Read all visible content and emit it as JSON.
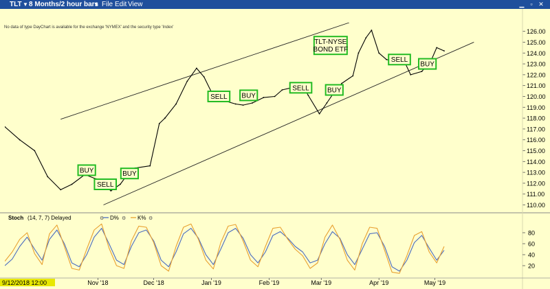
{
  "window": {
    "symbol": "TLT",
    "period": "8 Months/2 hour bars",
    "menu": [
      "File",
      "Edit",
      "View"
    ],
    "controls": [
      "minimize",
      "restore",
      "close"
    ]
  },
  "notice": "No data of type DayChart is available for the exchange 'NYMEX' and the security type 'Index'",
  "cursor_date": "9/12/2018 12:00",
  "chart_data": [
    {
      "type": "line",
      "panel": "price",
      "series": [
        {
          "name": "TLT",
          "x": [
            "2018-09-12",
            "2018-09-20",
            "2018-09-28",
            "2018-10-05",
            "2018-10-12",
            "2018-10-18",
            "2018-10-25",
            "2018-10-31",
            "2018-11-08",
            "2018-11-13",
            "2018-11-16",
            "2018-11-21",
            "2018-11-29",
            "2018-12-04",
            "2018-12-07",
            "2018-12-13",
            "2018-12-19",
            "2018-12-24",
            "2018-12-28",
            "2019-01-03",
            "2019-01-08",
            "2019-01-14",
            "2019-01-18",
            "2019-01-23",
            "2019-01-29",
            "2019-02-04",
            "2019-02-08",
            "2019-02-13",
            "2019-02-19",
            "2019-02-22",
            "2019-02-28",
            "2019-03-04",
            "2019-03-08",
            "2019-03-12",
            "2019-03-18",
            "2019-03-21",
            "2019-03-25",
            "2019-03-28",
            "2019-04-01",
            "2019-04-05",
            "2019-04-10",
            "2019-04-15",
            "2019-04-18",
            "2019-04-24",
            "2019-04-29",
            "2019-05-02",
            "2019-05-06"
          ],
          "values": [
            117.2,
            116.0,
            115.0,
            112.6,
            111.4,
            111.9,
            112.8,
            112.4,
            111.3,
            111.9,
            112.6,
            113.4,
            113.6,
            117.5,
            118.0,
            119.3,
            121.4,
            122.6,
            121.8,
            119.7,
            119.6,
            119.3,
            119.2,
            119.4,
            119.9,
            120.0,
            120.6,
            120.8,
            121.0,
            120.1,
            118.4,
            119.4,
            120.4,
            121.2,
            121.9,
            124.0,
            125.4,
            126.1,
            124.0,
            123.4,
            123.2,
            123.1,
            122.0,
            122.3,
            123.3,
            124.5,
            124.2
          ]
        }
      ],
      "ylim": [
        109.4,
        126.8
      ],
      "yticks": [
        110,
        111,
        112,
        113,
        114,
        115,
        116,
        117,
        118,
        119,
        120,
        121,
        122,
        123,
        124,
        125,
        126
      ],
      "ytick_labels": [
        "110.00",
        "111.00",
        "112.00",
        "113.00",
        "114.00",
        "115.00",
        "116.00",
        "117.00",
        "118.00",
        "119.00",
        "120.00",
        "121.00",
        "122.00",
        "123.00",
        "124.00",
        "125.00",
        "126.00"
      ],
      "xticks": [
        "2018-11-01",
        "2018-12-01",
        "2019-01-01",
        "2019-02-01",
        "2019-03-01",
        "2019-04-01",
        "2019-05-01"
      ],
      "xtick_labels": [
        "Nov '18",
        "Dec '18",
        "Jan '19",
        "Feb '19",
        "Mar '19",
        "Apr '19",
        "May '19"
      ],
      "trendlines": [
        {
          "name": "channel-upper",
          "x": [
            "2018-10-12",
            "2019-03-16"
          ],
          "y": [
            117.9,
            126.8
          ]
        },
        {
          "name": "channel-lower",
          "x": [
            "2018-11-04",
            "2019-05-22"
          ],
          "y": [
            110.0,
            125.0
          ]
        }
      ],
      "annotations": [
        {
          "text": "BUY",
          "x": "2018-10-26",
          "y": 113.2
        },
        {
          "text": "SELL",
          "x": "2018-11-05",
          "y": 111.9
        },
        {
          "text": "BUY",
          "x": "2018-11-18",
          "y": 112.9
        },
        {
          "text": "SELL",
          "x": "2019-01-05",
          "y": 120.0
        },
        {
          "text": "BUY",
          "x": "2019-01-21",
          "y": 120.1
        },
        {
          "text": "SELL",
          "x": "2019-02-18",
          "y": 120.8
        },
        {
          "text": "BUY",
          "x": "2019-03-08",
          "y": 120.6
        },
        {
          "text": "SELL",
          "x": "2019-04-12",
          "y": 123.4
        },
        {
          "text": "BUY",
          "x": "2019-04-27",
          "y": 123.0
        },
        {
          "text": "TLT-NYSE\nBOND ETF",
          "x": "2019-03-06",
          "y": 124.7
        }
      ],
      "grid": false
    },
    {
      "type": "line",
      "panel": "stochastic",
      "title": "Stoch",
      "params": "(14, 7, 7) Delayed",
      "series": [
        {
          "name": "D%",
          "color": "#4a6cc0",
          "x": [
            "2018-09-12",
            "2018-09-16",
            "2018-09-20",
            "2018-09-24",
            "2018-09-28",
            "2018-10-02",
            "2018-10-06",
            "2018-10-10",
            "2018-10-14",
            "2018-10-18",
            "2018-10-22",
            "2018-10-26",
            "2018-10-30",
            "2018-11-03",
            "2018-11-07",
            "2018-11-11",
            "2018-11-15",
            "2018-11-19",
            "2018-11-23",
            "2018-11-27",
            "2018-12-01",
            "2018-12-05",
            "2018-12-09",
            "2018-12-13",
            "2018-12-17",
            "2018-12-21",
            "2018-12-25",
            "2018-12-29",
            "2019-01-02",
            "2019-01-06",
            "2019-01-10",
            "2019-01-14",
            "2019-01-18",
            "2019-01-22",
            "2019-01-26",
            "2019-01-30",
            "2019-02-03",
            "2019-02-07",
            "2019-02-11",
            "2019-02-15",
            "2019-02-19",
            "2019-02-23",
            "2019-02-27",
            "2019-03-03",
            "2019-03-07",
            "2019-03-11",
            "2019-03-15",
            "2019-03-19",
            "2019-03-23",
            "2019-03-27",
            "2019-03-31",
            "2019-04-04",
            "2019-04-08",
            "2019-04-12",
            "2019-04-16",
            "2019-04-20",
            "2019-04-24",
            "2019-04-28",
            "2019-05-02",
            "2019-05-06"
          ],
          "values": [
            20,
            32,
            55,
            72,
            50,
            30,
            68,
            85,
            60,
            25,
            18,
            40,
            72,
            88,
            60,
            30,
            22,
            55,
            80,
            85,
            65,
            30,
            18,
            45,
            78,
            88,
            70,
            40,
            22,
            50,
            80,
            88,
            70,
            40,
            25,
            45,
            75,
            82,
            70,
            55,
            45,
            25,
            30,
            60,
            82,
            70,
            40,
            22,
            50,
            78,
            80,
            55,
            18,
            10,
            30,
            62,
            75,
            52,
            30,
            48
          ]
        },
        {
          "name": "K%",
          "color": "#e8a030",
          "x": [
            "2018-09-12",
            "2018-09-16",
            "2018-09-20",
            "2018-09-24",
            "2018-09-28",
            "2018-10-02",
            "2018-10-06",
            "2018-10-10",
            "2018-10-14",
            "2018-10-18",
            "2018-10-22",
            "2018-10-26",
            "2018-10-30",
            "2018-11-03",
            "2018-11-07",
            "2018-11-11",
            "2018-11-15",
            "2018-11-19",
            "2018-11-23",
            "2018-11-27",
            "2018-12-01",
            "2018-12-05",
            "2018-12-09",
            "2018-12-13",
            "2018-12-17",
            "2018-12-21",
            "2018-12-25",
            "2018-12-29",
            "2019-01-02",
            "2019-01-06",
            "2019-01-10",
            "2019-01-14",
            "2019-01-18",
            "2019-01-22",
            "2019-01-26",
            "2019-01-30",
            "2019-02-03",
            "2019-02-07",
            "2019-02-11",
            "2019-02-15",
            "2019-02-19",
            "2019-02-23",
            "2019-02-27",
            "2019-03-03",
            "2019-03-07",
            "2019-03-11",
            "2019-03-15",
            "2019-03-19",
            "2019-03-23",
            "2019-03-27",
            "2019-03-31",
            "2019-04-04",
            "2019-04-08",
            "2019-04-12",
            "2019-04-16",
            "2019-04-20",
            "2019-04-24",
            "2019-04-28",
            "2019-05-02",
            "2019-05-06"
          ],
          "values": [
            28,
            45,
            68,
            80,
            42,
            22,
            78,
            94,
            55,
            15,
            12,
            50,
            85,
            96,
            52,
            20,
            15,
            65,
            92,
            90,
            62,
            20,
            10,
            55,
            90,
            96,
            68,
            30,
            14,
            62,
            92,
            95,
            65,
            30,
            18,
            55,
            88,
            90,
            68,
            50,
            38,
            15,
            25,
            72,
            94,
            68,
            30,
            12,
            60,
            90,
            88,
            48,
            8,
            6,
            38,
            75,
            82,
            45,
            25,
            55
          ]
        }
      ],
      "ylim": [
        0,
        100
      ],
      "yticks": [
        20,
        40,
        60,
        80
      ],
      "ytick_labels": [
        "20",
        "40",
        "60",
        "80"
      ]
    }
  ]
}
